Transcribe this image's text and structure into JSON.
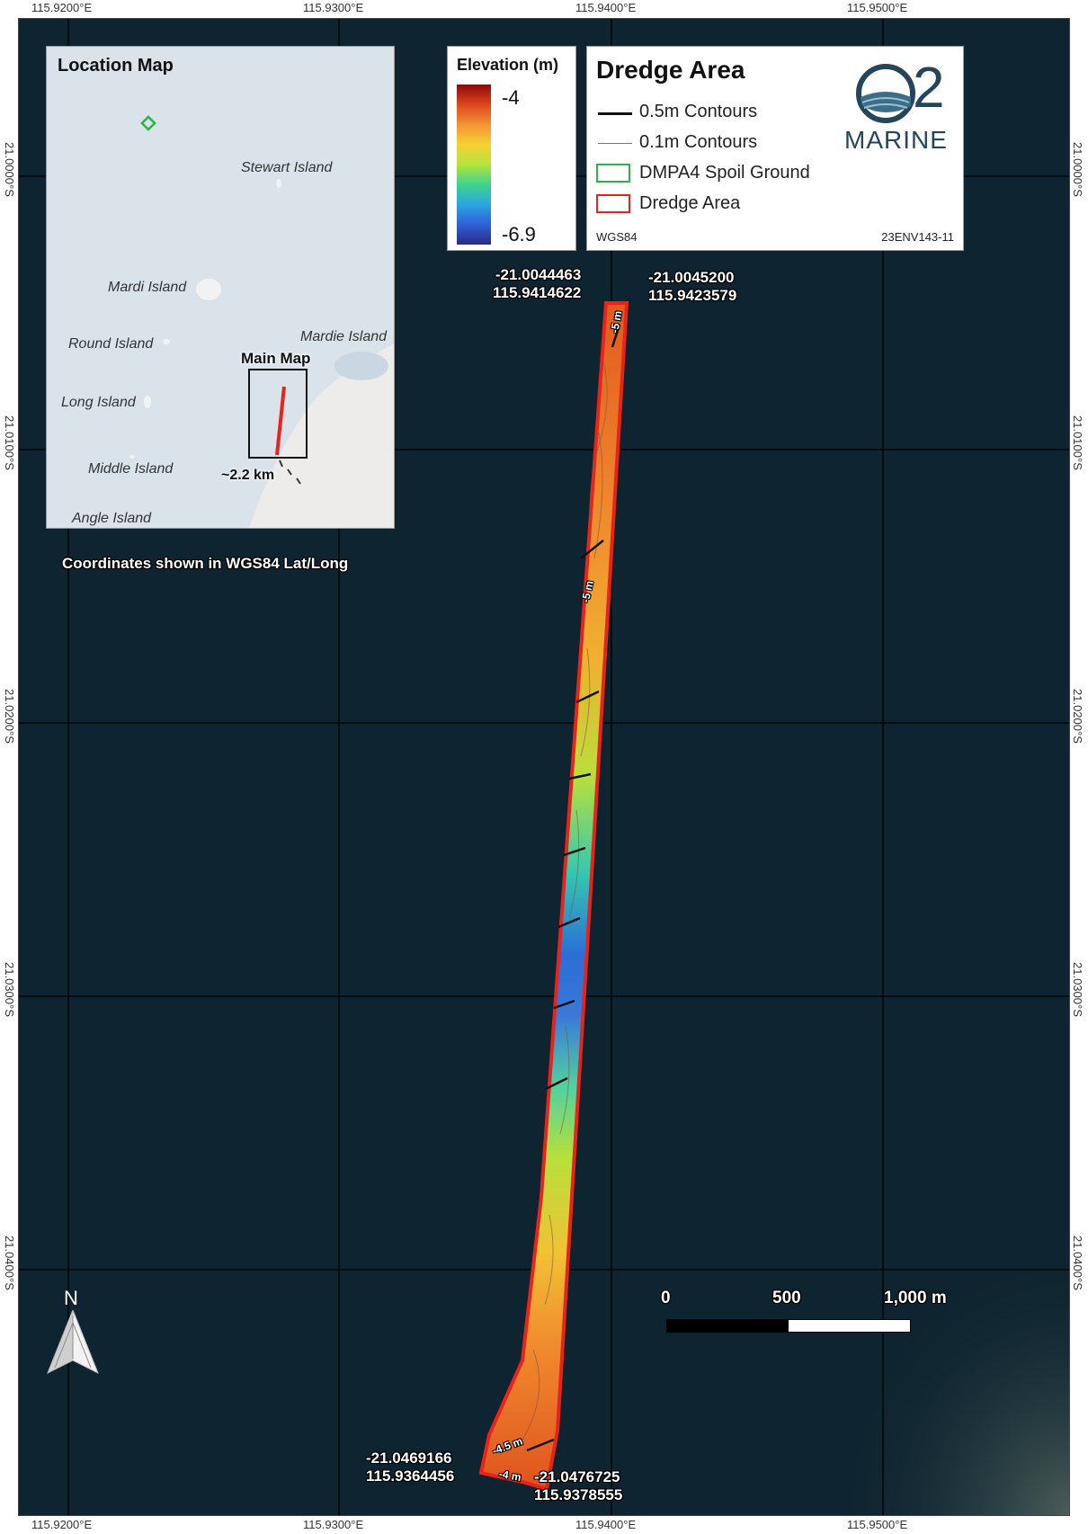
{
  "frame": {
    "top_lon": [
      "115.9200°E",
      "115.9300°E",
      "115.9400°E",
      "115.9500°E"
    ],
    "bottom_lon": [
      "115.9200°E",
      "115.9300°E",
      "115.9400°E",
      "115.9500°E"
    ],
    "left_lat": [
      "21.0000°S",
      "21.0100°S",
      "21.0200°S",
      "21.0300°S",
      "21.0400°S"
    ],
    "right_lat": [
      "21.0000°S",
      "21.0100°S",
      "21.0200°S",
      "21.0300°S",
      "21.0400°S"
    ]
  },
  "location_map": {
    "title": "Location Map",
    "islands": [
      "Stewart Island",
      "Mardi Island",
      "Mardie Island",
      "Round Island",
      "Long Island",
      "Middle Island",
      "Angle Island"
    ],
    "main_map_label": "Main Map",
    "distance_label": "~2.2 km"
  },
  "coordinate_note": "Coordinates shown in WGS84 Lat/Long",
  "elevation_legend": {
    "title": "Elevation (m)",
    "max": "-4",
    "min": "-6.9",
    "colors": [
      "#8b0a0a",
      "#e0451c",
      "#f19433",
      "#f5d234",
      "#b5e33c",
      "#3fd28c",
      "#2aa6e0",
      "#3060d8",
      "#2a2a86"
    ]
  },
  "legend": {
    "title": "Dredge Area",
    "items": [
      "0.5m Contours",
      "0.1m Contours",
      "DMPA4 Spoil Ground",
      "Dredge Area"
    ],
    "crs": "WGS84",
    "doc_id": "23ENV143-11",
    "logo_number": "2",
    "logo_text": "MARINE"
  },
  "corner_labels": {
    "top_left": [
      "-21.0044463",
      "115.9414622"
    ],
    "top_right": [
      "-21.0045200",
      "115.9423579"
    ],
    "bottom_left": [
      "-21.0469166",
      "115.9364456"
    ],
    "bottom_right": [
      "-21.0476725",
      "115.9378555"
    ]
  },
  "contour_labels": [
    "-5 m",
    "-5 m",
    "-4.5 m",
    "-4 m"
  ],
  "scale_bar": {
    "labels": [
      "0",
      "500",
      "1,000 m"
    ]
  },
  "north_arrow": {
    "label": "N"
  },
  "colors": {
    "ocean": "#0e2430",
    "dredge_outline": "#e8231c",
    "spoil_outline": "#2db34a",
    "land": "#eeecea",
    "inset_sea": "#dbe3ea"
  }
}
